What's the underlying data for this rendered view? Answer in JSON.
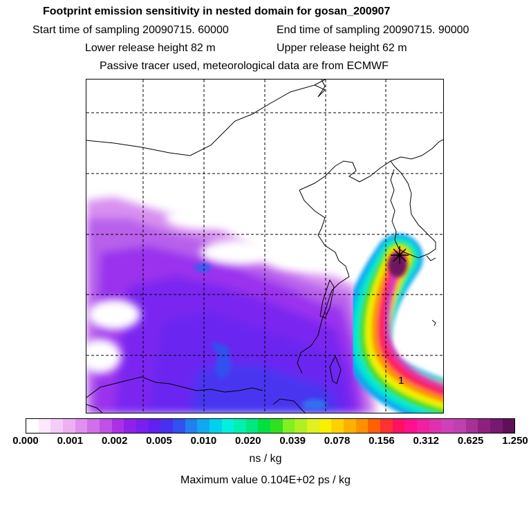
{
  "header": {
    "title": "Footprint emission sensitivity in nested domain for gosan_200907",
    "start_time": "Start time of sampling 20090715. 60000",
    "end_time": "End time of sampling 20090715. 90000",
    "lower_height": "Lower release height   82 m",
    "upper_height": "Upper release height   62 m",
    "info": "Passive tracer used, meteorological data are from ECMWF"
  },
  "map": {
    "receptor_label": "1"
  },
  "colorbar": {
    "colors": [
      "#ffffff",
      "#fce8fc",
      "#f5ccf7",
      "#ecb0f3",
      "#e090ee",
      "#d070ea",
      "#c050e8",
      "#ac30e8",
      "#9020ec",
      "#7820f0",
      "#6020f0",
      "#4830f0",
      "#3050f0",
      "#2080f0",
      "#10a8f0",
      "#00d0f0",
      "#00f0e0",
      "#00f0b0",
      "#00e880",
      "#00e040",
      "#30e020",
      "#80f020",
      "#b0f020",
      "#e0f020",
      "#f8f000",
      "#ffd000",
      "#ffb000",
      "#ff9000",
      "#ff6000",
      "#ff3030",
      "#ff1060",
      "#ff1090",
      "#f020a0",
      "#e030b0",
      "#d040b8",
      "#c040b0",
      "#a83098",
      "#902080",
      "#781870",
      "#601058"
    ],
    "ticks": [
      "0.000",
      "0.001",
      "0.002",
      "0.005",
      "0.010",
      "0.020",
      "0.039",
      "0.078",
      "0.156",
      "0.312",
      "0.625",
      "1.250"
    ],
    "unit": "ns / kg",
    "max_value": "Maximum value  0.104E+02 ps / kg"
  }
}
